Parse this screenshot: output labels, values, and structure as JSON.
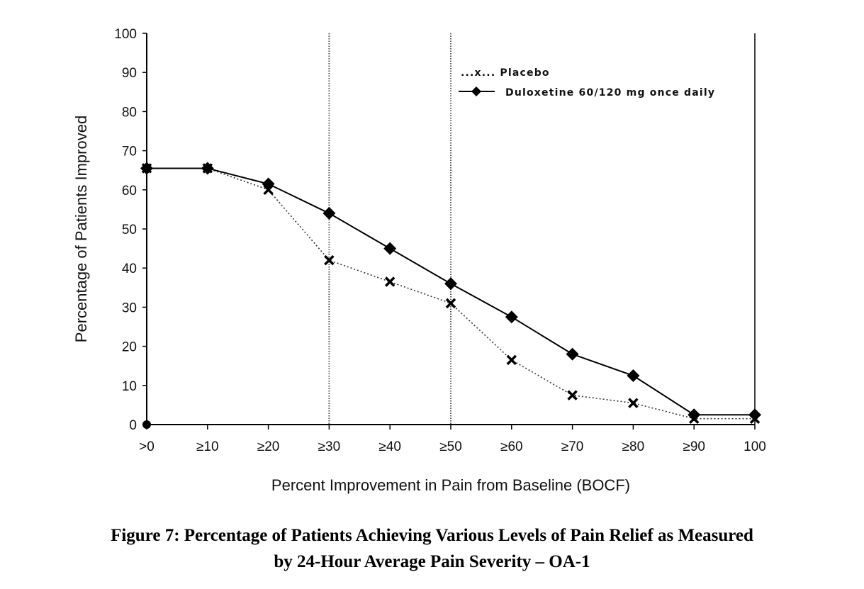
{
  "chart_data": {
    "type": "line",
    "title": "",
    "xlabel": "Percent Improvement in Pain from Baseline (BOCF)",
    "ylabel": "Percentage of Patients Improved",
    "ylim": [
      0,
      100
    ],
    "yticks": [
      0,
      10,
      20,
      30,
      40,
      50,
      60,
      70,
      80,
      90,
      100
    ],
    "categories": [
      ">0",
      "≥10",
      "≥20",
      "≥30",
      "≥40",
      "≥50",
      "≥60",
      "≥70",
      "≥80",
      "≥90",
      "100"
    ],
    "reference_lines_at": [
      "≥30",
      "≥50"
    ],
    "legend_position": "top-right",
    "series": [
      {
        "name": "Placebo",
        "legend_label": "...x... Placebo",
        "style": "dotted",
        "marker": "x",
        "values": [
          65.5,
          65.5,
          60,
          42,
          36.5,
          31,
          16.5,
          7.5,
          5.5,
          1.5,
          1.5
        ]
      },
      {
        "name": "Duloxetine 60/120 mg once daily",
        "legend_label": "Duloxetine 60/120 mg once daily",
        "style": "solid",
        "marker": "diamond",
        "values": [
          65.5,
          65.5,
          61.5,
          54,
          45,
          36,
          27.5,
          18,
          12.5,
          2.5,
          2.5
        ]
      }
    ],
    "origin_marker": {
      "category": ">0",
      "value": 0
    },
    "grid": false
  },
  "caption": {
    "line1": "Figure 7: Percentage of Patients Achieving Various Levels of Pain Relief as Measured",
    "line2": "by 24-Hour Average Pain Severity – OA-1"
  }
}
